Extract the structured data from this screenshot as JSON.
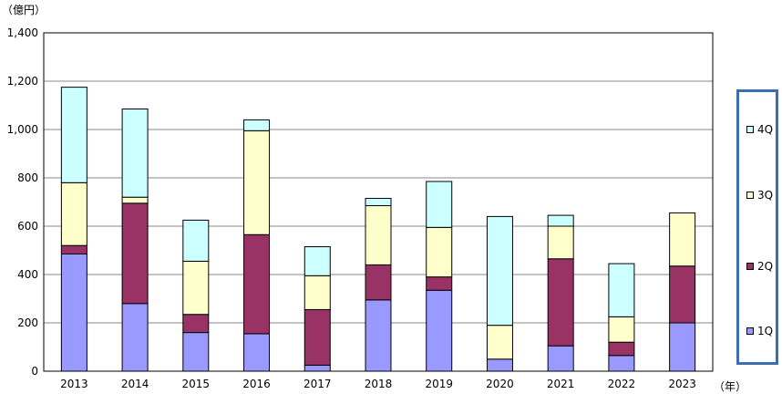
{
  "chart_data": {
    "type": "bar",
    "stacked": true,
    "unit_label": "（億円）",
    "x_unit": "（年）",
    "categories": [
      "2013",
      "2014",
      "2015",
      "2016",
      "2017",
      "2018",
      "2019",
      "2020",
      "2021",
      "2022",
      "2023"
    ],
    "series": [
      {
        "name": "1Q",
        "color": "#9999ff",
        "values": [
          485,
          280,
          160,
          155,
          25,
          295,
          335,
          50,
          105,
          65,
          200
        ]
      },
      {
        "name": "2Q",
        "color": "#993366",
        "values": [
          35,
          415,
          75,
          410,
          230,
          145,
          55,
          0,
          360,
          55,
          235
        ]
      },
      {
        "name": "3Q",
        "color": "#ffffcc",
        "values": [
          260,
          25,
          220,
          430,
          140,
          245,
          205,
          140,
          135,
          105,
          220
        ]
      },
      {
        "name": "4Q",
        "color": "#ccffff",
        "values": [
          395,
          365,
          170,
          45,
          120,
          30,
          190,
          450,
          45,
          220,
          0
        ]
      }
    ],
    "ylim": [
      0,
      1400
    ],
    "yticks": [
      "0",
      "200",
      "400",
      "600",
      "800",
      "1,000",
      "1,200",
      "1,400"
    ],
    "ytick_values": [
      0,
      200,
      400,
      600,
      800,
      1000,
      1200,
      1400
    ],
    "grid": true,
    "legend_position": "right"
  }
}
